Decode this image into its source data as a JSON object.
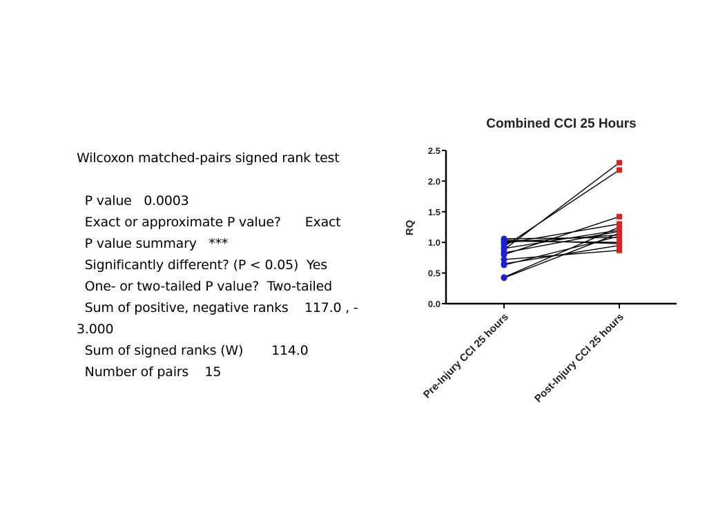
{
  "stats_panel": {
    "lines": [
      "Wilcoxon matched-pairs signed rank test",
      "",
      "  P value   0.0003",
      "  Exact or approximate P value?      Exact",
      "  P value summary   ***",
      "  Significantly different? (P < 0.05)  Yes",
      "  One- or two-tailed P value?  Two-tailed",
      "  Sum of positive, negative ranks    117.0 , -",
      "3.000",
      "  Sum of signed ranks (W)       114.0",
      "  Number of pairs    15"
    ]
  },
  "chart_data": {
    "type": "scatter",
    "subtype": "paired before-after",
    "title": "Combined CCI 25 Hours",
    "xlabel": "",
    "ylabel": "RQ",
    "ylim": [
      0,
      2.5
    ],
    "yticks": [
      "0.0",
      "0.5",
      "1.0",
      "1.5",
      "2.0",
      "2.5"
    ],
    "categories": [
      "Pre-Injury CCI 25 hours",
      "Post-Injury CCI 25 hours"
    ],
    "series": [
      {
        "name": "Pre-Injury CCI 25 hours",
        "color": "#1f1fd6",
        "marker": "circle",
        "values": [
          0.42,
          0.43,
          0.63,
          0.65,
          0.72,
          0.8,
          0.83,
          0.88,
          0.9,
          0.93,
          0.98,
          1.0,
          1.02,
          1.04,
          1.06
        ]
      },
      {
        "name": "Post-Injury CCI 25 hours",
        "color": "#e02020",
        "marker": "square",
        "values": [
          1.15,
          1.25,
          1.1,
          0.95,
          0.87,
          1.42,
          1.18,
          2.3,
          1.2,
          2.18,
          1.3,
          1.12,
          1.0,
          0.98,
          1.08
        ]
      }
    ],
    "pairs_note": "each pre value is connected by a line to its post value"
  }
}
